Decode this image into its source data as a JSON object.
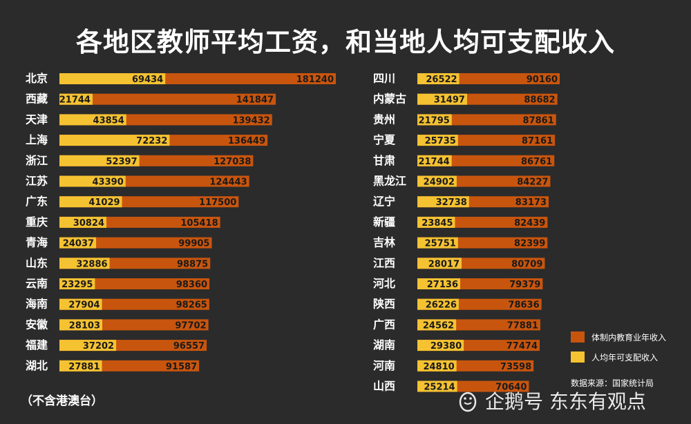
{
  "title": "各地区教师平均工资，和当地人均可支配收入",
  "note": "（不含港澳台）",
  "source": "数据来源：国家统计局",
  "watermark": {
    "text": "企鹅号 东东有观点",
    "icon": "penguin-icon"
  },
  "colors": {
    "teacher_income": "#c8550e",
    "disposable_income": "#f5c232",
    "background": "#2b2b2b"
  },
  "chart_data": {
    "type": "bar",
    "orientation": "horizontal",
    "overlay": true,
    "title": "各地区教师平均工资，和当地人均可支配收入",
    "legend": [
      "体制内教育业年收入",
      "人均年可支配收入"
    ],
    "legend_position": "bottom-right",
    "series": [
      {
        "name": "体制内教育业年收入",
        "color": "#c8550e"
      },
      {
        "name": "人均年可支配收入",
        "color": "#f5c232"
      }
    ],
    "panels": [
      {
        "categories": [
          "北京",
          "西藏",
          "天津",
          "上海",
          "浙江",
          "江苏",
          "广东",
          "重庆",
          "青海",
          "山东",
          "云南",
          "海南",
          "安徽",
          "福建",
          "湖北"
        ],
        "teacher_income": [
          181240,
          141847,
          139432,
          136449,
          127038,
          124443,
          117500,
          105418,
          99905,
          98875,
          98360,
          98265,
          97702,
          96557,
          91587
        ],
        "disposable_income": [
          69434,
          21744,
          43854,
          72232,
          52397,
          43390,
          41029,
          30824,
          24037,
          32886,
          23295,
          27904,
          28103,
          37202,
          27881
        ]
      },
      {
        "categories": [
          "四川",
          "内蒙古",
          "贵州",
          "宁夏",
          "甘肃",
          "黑龙江",
          "辽宁",
          "新疆",
          "吉林",
          "江西",
          "河北",
          "陕西",
          "广西",
          "湖南",
          "河南",
          "山西"
        ],
        "teacher_income": [
          90160,
          88682,
          87861,
          87161,
          86761,
          84227,
          83173,
          82439,
          82399,
          80709,
          79379,
          78636,
          77881,
          77474,
          73598,
          70640
        ],
        "disposable_income": [
          26522,
          31497,
          21795,
          25735,
          21744,
          24902,
          32738,
          23845,
          25751,
          28017,
          27136,
          26226,
          24562,
          29380,
          24810,
          25214
        ]
      }
    ]
  }
}
